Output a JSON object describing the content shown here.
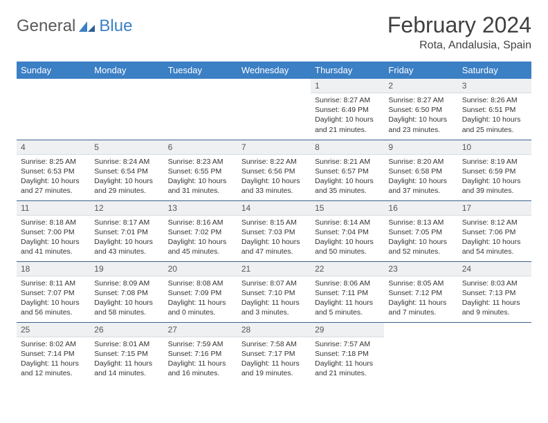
{
  "brand": {
    "part1": "General",
    "part2": "Blue"
  },
  "title": "February 2024",
  "location": "Rota, Andalusia, Spain",
  "colors": {
    "header_bg": "#3b7fc4",
    "header_text": "#ffffff",
    "daynum_bg": "#eef0f2",
    "row_divider": "#3b5f8a",
    "body_text": "#333333",
    "title_text": "#404040",
    "logo_gray": "#5a5a5a",
    "logo_blue": "#3b7fc4",
    "page_bg": "#ffffff"
  },
  "typography": {
    "title_fontsize": 32,
    "location_fontsize": 16,
    "dayheader_fontsize": 13,
    "cell_fontsize": 10.5,
    "daynum_fontsize": 12
  },
  "day_headers": [
    "Sunday",
    "Monday",
    "Tuesday",
    "Wednesday",
    "Thursday",
    "Friday",
    "Saturday"
  ],
  "weeks": [
    [
      {
        "empty": true
      },
      {
        "empty": true
      },
      {
        "empty": true
      },
      {
        "empty": true
      },
      {
        "num": "1",
        "sunrise": "Sunrise: 8:27 AM",
        "sunset": "Sunset: 6:49 PM",
        "daylight": "Daylight: 10 hours and 21 minutes."
      },
      {
        "num": "2",
        "sunrise": "Sunrise: 8:27 AM",
        "sunset": "Sunset: 6:50 PM",
        "daylight": "Daylight: 10 hours and 23 minutes."
      },
      {
        "num": "3",
        "sunrise": "Sunrise: 8:26 AM",
        "sunset": "Sunset: 6:51 PM",
        "daylight": "Daylight: 10 hours and 25 minutes."
      }
    ],
    [
      {
        "num": "4",
        "sunrise": "Sunrise: 8:25 AM",
        "sunset": "Sunset: 6:53 PM",
        "daylight": "Daylight: 10 hours and 27 minutes."
      },
      {
        "num": "5",
        "sunrise": "Sunrise: 8:24 AM",
        "sunset": "Sunset: 6:54 PM",
        "daylight": "Daylight: 10 hours and 29 minutes."
      },
      {
        "num": "6",
        "sunrise": "Sunrise: 8:23 AM",
        "sunset": "Sunset: 6:55 PM",
        "daylight": "Daylight: 10 hours and 31 minutes."
      },
      {
        "num": "7",
        "sunrise": "Sunrise: 8:22 AM",
        "sunset": "Sunset: 6:56 PM",
        "daylight": "Daylight: 10 hours and 33 minutes."
      },
      {
        "num": "8",
        "sunrise": "Sunrise: 8:21 AM",
        "sunset": "Sunset: 6:57 PM",
        "daylight": "Daylight: 10 hours and 35 minutes."
      },
      {
        "num": "9",
        "sunrise": "Sunrise: 8:20 AM",
        "sunset": "Sunset: 6:58 PM",
        "daylight": "Daylight: 10 hours and 37 minutes."
      },
      {
        "num": "10",
        "sunrise": "Sunrise: 8:19 AM",
        "sunset": "Sunset: 6:59 PM",
        "daylight": "Daylight: 10 hours and 39 minutes."
      }
    ],
    [
      {
        "num": "11",
        "sunrise": "Sunrise: 8:18 AM",
        "sunset": "Sunset: 7:00 PM",
        "daylight": "Daylight: 10 hours and 41 minutes."
      },
      {
        "num": "12",
        "sunrise": "Sunrise: 8:17 AM",
        "sunset": "Sunset: 7:01 PM",
        "daylight": "Daylight: 10 hours and 43 minutes."
      },
      {
        "num": "13",
        "sunrise": "Sunrise: 8:16 AM",
        "sunset": "Sunset: 7:02 PM",
        "daylight": "Daylight: 10 hours and 45 minutes."
      },
      {
        "num": "14",
        "sunrise": "Sunrise: 8:15 AM",
        "sunset": "Sunset: 7:03 PM",
        "daylight": "Daylight: 10 hours and 47 minutes."
      },
      {
        "num": "15",
        "sunrise": "Sunrise: 8:14 AM",
        "sunset": "Sunset: 7:04 PM",
        "daylight": "Daylight: 10 hours and 50 minutes."
      },
      {
        "num": "16",
        "sunrise": "Sunrise: 8:13 AM",
        "sunset": "Sunset: 7:05 PM",
        "daylight": "Daylight: 10 hours and 52 minutes."
      },
      {
        "num": "17",
        "sunrise": "Sunrise: 8:12 AM",
        "sunset": "Sunset: 7:06 PM",
        "daylight": "Daylight: 10 hours and 54 minutes."
      }
    ],
    [
      {
        "num": "18",
        "sunrise": "Sunrise: 8:11 AM",
        "sunset": "Sunset: 7:07 PM",
        "daylight": "Daylight: 10 hours and 56 minutes."
      },
      {
        "num": "19",
        "sunrise": "Sunrise: 8:09 AM",
        "sunset": "Sunset: 7:08 PM",
        "daylight": "Daylight: 10 hours and 58 minutes."
      },
      {
        "num": "20",
        "sunrise": "Sunrise: 8:08 AM",
        "sunset": "Sunset: 7:09 PM",
        "daylight": "Daylight: 11 hours and 0 minutes."
      },
      {
        "num": "21",
        "sunrise": "Sunrise: 8:07 AM",
        "sunset": "Sunset: 7:10 PM",
        "daylight": "Daylight: 11 hours and 3 minutes."
      },
      {
        "num": "22",
        "sunrise": "Sunrise: 8:06 AM",
        "sunset": "Sunset: 7:11 PM",
        "daylight": "Daylight: 11 hours and 5 minutes."
      },
      {
        "num": "23",
        "sunrise": "Sunrise: 8:05 AM",
        "sunset": "Sunset: 7:12 PM",
        "daylight": "Daylight: 11 hours and 7 minutes."
      },
      {
        "num": "24",
        "sunrise": "Sunrise: 8:03 AM",
        "sunset": "Sunset: 7:13 PM",
        "daylight": "Daylight: 11 hours and 9 minutes."
      }
    ],
    [
      {
        "num": "25",
        "sunrise": "Sunrise: 8:02 AM",
        "sunset": "Sunset: 7:14 PM",
        "daylight": "Daylight: 11 hours and 12 minutes."
      },
      {
        "num": "26",
        "sunrise": "Sunrise: 8:01 AM",
        "sunset": "Sunset: 7:15 PM",
        "daylight": "Daylight: 11 hours and 14 minutes."
      },
      {
        "num": "27",
        "sunrise": "Sunrise: 7:59 AM",
        "sunset": "Sunset: 7:16 PM",
        "daylight": "Daylight: 11 hours and 16 minutes."
      },
      {
        "num": "28",
        "sunrise": "Sunrise: 7:58 AM",
        "sunset": "Sunset: 7:17 PM",
        "daylight": "Daylight: 11 hours and 19 minutes."
      },
      {
        "num": "29",
        "sunrise": "Sunrise: 7:57 AM",
        "sunset": "Sunset: 7:18 PM",
        "daylight": "Daylight: 11 hours and 21 minutes."
      },
      {
        "empty": true
      },
      {
        "empty": true
      }
    ]
  ]
}
